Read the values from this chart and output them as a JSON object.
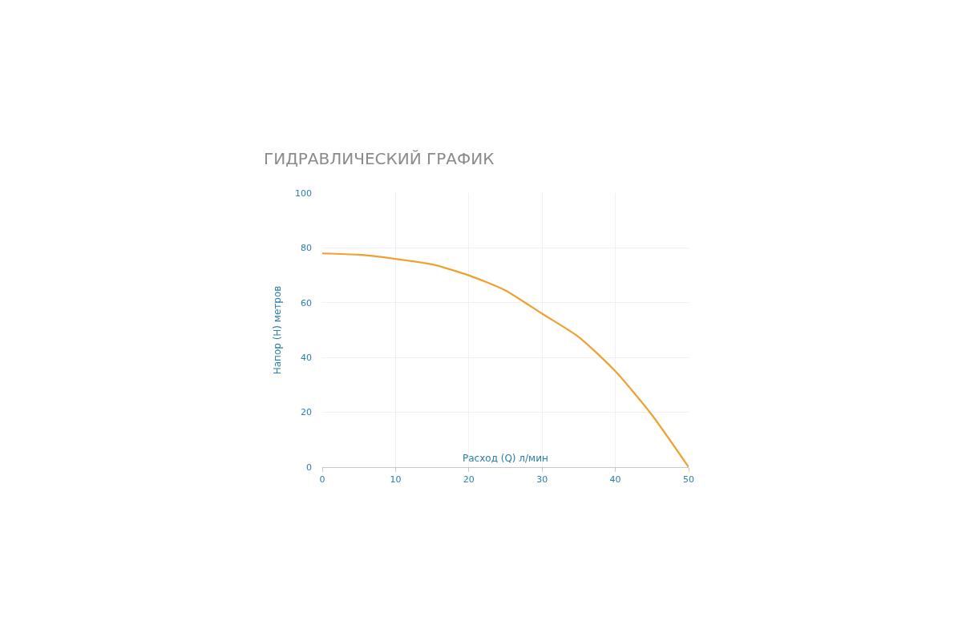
{
  "chart_data": {
    "type": "line",
    "title": "ГИДРАВЛИЧЕСКИЙ ГРАФИК",
    "xlabel": "Расход (Q) л/мин",
    "ylabel": "Напор (H) метров",
    "x": [
      0,
      5,
      10,
      15,
      20,
      25,
      30,
      35,
      40,
      45,
      50
    ],
    "series": [
      {
        "color": "#f0a030",
        "values": [
          78,
          77.5,
          76,
          74,
          70,
          64.5,
          56,
          47.5,
          35,
          19,
          0
        ]
      }
    ],
    "xlim": [
      0,
      50
    ],
    "xticks": [
      0,
      10,
      20,
      30,
      40,
      50
    ],
    "ylim": [
      0,
      100
    ],
    "yticks": [
      0,
      20,
      40,
      60,
      80,
      100
    ],
    "grid": true,
    "marker": "none",
    "line_style": "solid"
  }
}
